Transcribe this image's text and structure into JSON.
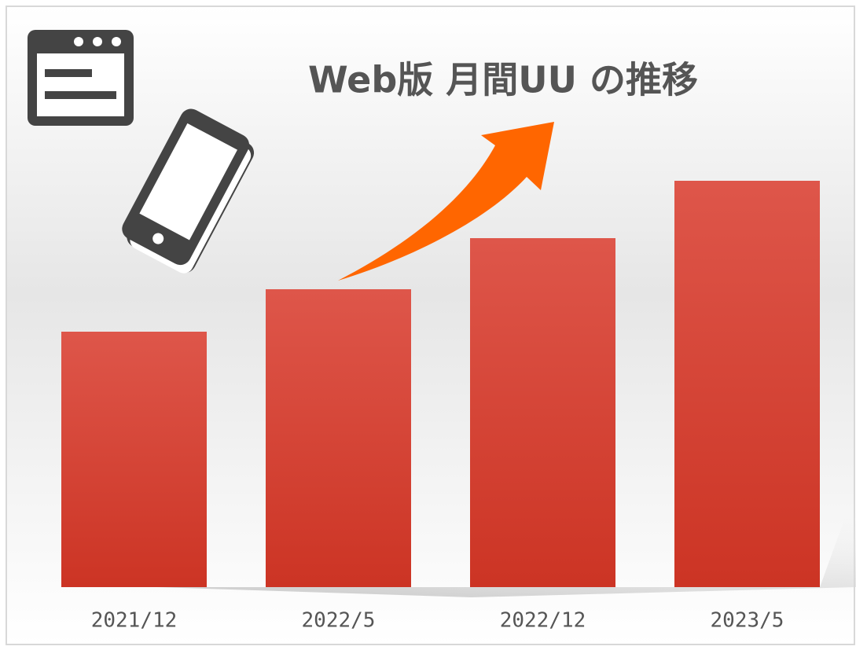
{
  "chart_data": {
    "type": "bar",
    "title": "Web版 月間UU の推移",
    "categories": [
      "2021/12",
      "2022/5",
      "2022/12",
      "2023/5"
    ],
    "values": [
      325,
      379,
      444,
      517
    ],
    "color": "#d84537"
  }
}
